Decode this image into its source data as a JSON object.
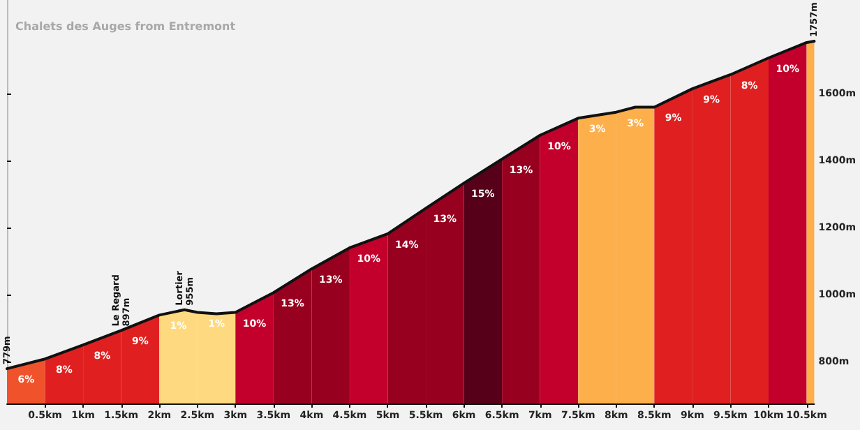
{
  "chart_data": {
    "type": "area",
    "title": "Chalets des Auges from Entremont",
    "xlim": [
      0,
      10.6
    ],
    "xticks": [
      {
        "value": 0.5,
        "label": "0.5km"
      },
      {
        "value": 1,
        "label": "1km"
      },
      {
        "value": 1.5,
        "label": "1.5km"
      },
      {
        "value": 2,
        "label": "2km"
      },
      {
        "value": 2.5,
        "label": "2.5km"
      },
      {
        "value": 3,
        "label": "3km"
      },
      {
        "value": 3.5,
        "label": "3.5km"
      },
      {
        "value": 4,
        "label": "4km"
      },
      {
        "value": 4.5,
        "label": "4.5km"
      },
      {
        "value": 5,
        "label": "5km"
      },
      {
        "value": 5.5,
        "label": "5.5km"
      },
      {
        "value": 6,
        "label": "6km"
      },
      {
        "value": 6.5,
        "label": "6.5km"
      },
      {
        "value": 7,
        "label": "7km"
      },
      {
        "value": 7.5,
        "label": "7.5km"
      },
      {
        "value": 8,
        "label": "8km"
      },
      {
        "value": 8.5,
        "label": "8.5km"
      },
      {
        "value": 9,
        "label": "9km"
      },
      {
        "value": 9.5,
        "label": "9.5km"
      },
      {
        "value": 10,
        "label": "10km"
      },
      {
        "value": 10.5,
        "label": "10.5km"
      }
    ],
    "ylim": [
      675,
      1880
    ],
    "yticks": [
      {
        "value": 800,
        "label": "800m"
      },
      {
        "value": 1000,
        "label": "1000m"
      },
      {
        "value": 1200,
        "label": "1200m"
      },
      {
        "value": 1400,
        "label": "1400m"
      },
      {
        "value": 1600,
        "label": "1600m"
      }
    ],
    "grid": false,
    "series": [
      {
        "color": "#f0532b",
        "x": [
          0,
          0.5
        ],
        "values": [
          779,
          808
        ]
      },
      {
        "color": "#e02020",
        "x": [
          0.5,
          1
        ],
        "values": [
          808,
          850
        ]
      },
      {
        "color": "#e02020",
        "x": [
          1,
          1.5
        ],
        "values": [
          850,
          893
        ]
      },
      {
        "color": "#e02020",
        "x": [
          1.5,
          2
        ],
        "values": [
          893,
          939
        ]
      },
      {
        "color": "#fed97f",
        "x": [
          2,
          2.33,
          2.5
        ],
        "values": [
          939,
          955,
          947
        ]
      },
      {
        "color": "#fed97f",
        "x": [
          2.5,
          2.75,
          3
        ],
        "values": [
          947,
          943,
          947
        ]
      },
      {
        "color": "#c3002b",
        "x": [
          3,
          3.5
        ],
        "values": [
          947,
          1006
        ]
      },
      {
        "color": "#98001f",
        "x": [
          3.5,
          4
        ],
        "values": [
          1006,
          1077
        ]
      },
      {
        "color": "#98001f",
        "x": [
          4,
          4.5
        ],
        "values": [
          1077,
          1140
        ]
      },
      {
        "color": "#c3002b",
        "x": [
          4.5,
          5
        ],
        "values": [
          1140,
          1182
        ]
      },
      {
        "color": "#98001f",
        "x": [
          5,
          5.5
        ],
        "values": [
          1182,
          1258
        ]
      },
      {
        "color": "#98001f",
        "x": [
          5.5,
          6
        ],
        "values": [
          1258,
          1333
        ]
      },
      {
        "color": "#560019",
        "x": [
          6,
          6.5
        ],
        "values": [
          1333,
          1405
        ]
      },
      {
        "color": "#98001f",
        "x": [
          6.5,
          7
        ],
        "values": [
          1405,
          1476
        ]
      },
      {
        "color": "#c3002b",
        "x": [
          7,
          7.5
        ],
        "values": [
          1476,
          1527
        ]
      },
      {
        "color": "#fcaf4b",
        "x": [
          7.5,
          8
        ],
        "values": [
          1527,
          1545
        ]
      },
      {
        "color": "#fcaf4b",
        "x": [
          8,
          8.25,
          8.5
        ],
        "values": [
          1545,
          1560,
          1560
        ]
      },
      {
        "color": "#e02020",
        "x": [
          8.5,
          9
        ],
        "values": [
          1560,
          1615
        ]
      },
      {
        "color": "#e02020",
        "x": [
          9,
          9.5
        ],
        "values": [
          1615,
          1657
        ]
      },
      {
        "color": "#e02020",
        "x": [
          9.5,
          10
        ],
        "values": [
          1657,
          1707
        ]
      },
      {
        "color": "#c3002b",
        "x": [
          10,
          10.5
        ],
        "values": [
          1707,
          1753
        ]
      },
      {
        "color": "#fcaf4b",
        "x": [
          10.5,
          10.6
        ],
        "values": [
          1753,
          1757
        ]
      },
      {
        "type": "line",
        "color": "#111111",
        "marker": "none",
        "x": [
          0,
          0.5,
          1,
          1.5,
          2,
          2.33,
          2.5,
          2.75,
          3,
          3.5,
          4,
          4.5,
          5,
          5.5,
          6,
          6.5,
          7,
          7.5,
          8,
          8.25,
          8.5,
          9,
          9.5,
          10,
          10.5,
          10.6
        ],
        "values": [
          779,
          808,
          850,
          893,
          939,
          955,
          947,
          943,
          947,
          1006,
          1077,
          1140,
          1182,
          1258,
          1333,
          1405,
          1476,
          1527,
          1545,
          1560,
          1560,
          1615,
          1657,
          1707,
          1753,
          1757
        ],
        "value_labels": [
          "779m",
          null,
          null,
          "Le Regard\n897m",
          null,
          "Lortier\n955m",
          null,
          null,
          null,
          null,
          null,
          null,
          null,
          null,
          null,
          null,
          null,
          null,
          null,
          null,
          null,
          null,
          null,
          null,
          null,
          "1757m"
        ]
      }
    ],
    "annotations": [
      "6%",
      "8%",
      "8%",
      "9%",
      "1%",
      "1%",
      "10%",
      "13%",
      "13%",
      "10%",
      "14%",
      "13%",
      "15%",
      "13%",
      "10%",
      "3%",
      "3%",
      "9%",
      "9%",
      "8%",
      "10%"
    ]
  }
}
